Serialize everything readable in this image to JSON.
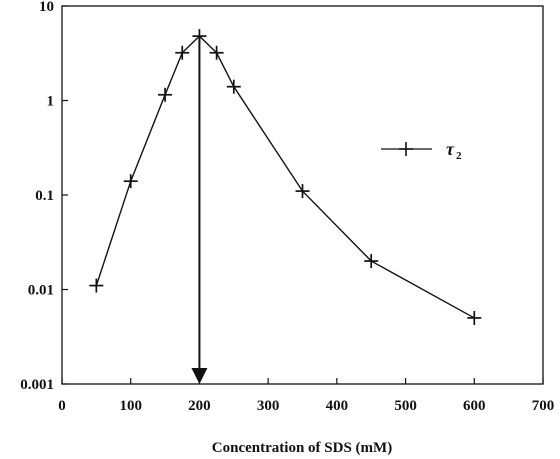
{
  "chart_data": {
    "type": "line",
    "xlabel": "Concentration of SDS (mM)",
    "ylabel": "",
    "xlim": [
      0,
      700
    ],
    "ylim": [
      0.001,
      10
    ],
    "y_scale": "log",
    "x_ticks": [
      "0",
      "100",
      "200",
      "300",
      "400",
      "500",
      "600",
      "700"
    ],
    "y_ticks": [
      "0.001",
      "0.01",
      "0.1",
      "1",
      "10"
    ],
    "grid": false,
    "legend_position": "right",
    "series": [
      {
        "name": "τ2",
        "marker": "plus",
        "color": "#111111",
        "points": [
          {
            "x": 50,
            "y": 0.011
          },
          {
            "x": 100,
            "y": 0.14
          },
          {
            "x": 150,
            "y": 1.15
          },
          {
            "x": 175,
            "y": 3.2
          },
          {
            "x": 200,
            "y": 4.8
          },
          {
            "x": 225,
            "y": 3.2
          },
          {
            "x": 250,
            "y": 1.4
          },
          {
            "x": 350,
            "y": 0.11
          },
          {
            "x": 450,
            "y": 0.02
          },
          {
            "x": 600,
            "y": 0.005
          }
        ]
      }
    ],
    "annotations": [
      {
        "type": "arrow",
        "x": 200,
        "from_y": 4.8,
        "to_y": 0.001,
        "direction": "down"
      }
    ]
  }
}
